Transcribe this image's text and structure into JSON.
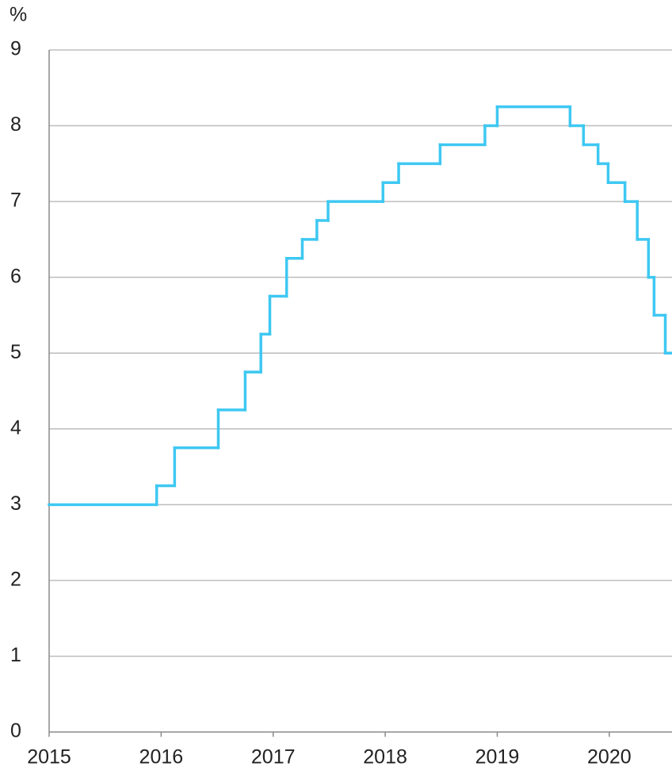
{
  "chart_data": {
    "type": "line",
    "step": "post",
    "y_label": "%",
    "x": [
      2015,
      2015.96,
      2016.12,
      2016.51,
      2016.75,
      2016.89,
      2016.97,
      2017.12,
      2017.26,
      2017.39,
      2017.49,
      2017.98,
      2018.12,
      2018.49,
      2018.89,
      2019.0,
      2019.65,
      2019.77,
      2019.9,
      2019.99,
      2020.14,
      2020.25,
      2020.35,
      2020.4,
      2020.5
    ],
    "values": [
      3,
      3.25,
      3.75,
      4.25,
      4.75,
      5.25,
      5.75,
      6.25,
      6.5,
      6.75,
      7,
      7.25,
      7.5,
      7.75,
      8,
      8.25,
      8,
      7.75,
      7.5,
      7.25,
      7,
      6.5,
      6,
      5.5,
      5
    ],
    "color": "#3ec8f2",
    "xlim": [
      2015,
      2020.56
    ],
    "xticks": [
      2015,
      2016,
      2017,
      2018,
      2019,
      2020
    ],
    "ylim": [
      0,
      9
    ],
    "yticks": [
      0,
      1,
      2,
      3,
      4,
      5,
      6,
      7,
      8,
      9
    ],
    "grid": true
  }
}
